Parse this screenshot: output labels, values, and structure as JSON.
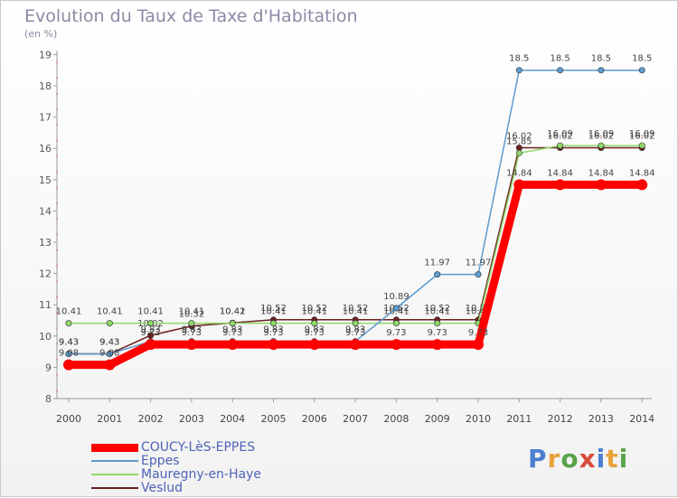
{
  "page": {
    "title": "Evolution du Taux de Taxe d'Habitation",
    "subtitle": "(en %)",
    "brand": [
      "P",
      "r",
      "o",
      "x",
      "i",
      "t",
      "i"
    ]
  },
  "colors": {
    "brand": [
      "#4a7fd1",
      "#e8a23a",
      "#5aa34a",
      "#d84a3a",
      "#4a7fd1",
      "#e8a23a",
      "#5aa34a"
    ]
  },
  "chart_data": {
    "type": "line",
    "title": "Evolution du Taux de Taxe d'Habitation",
    "ylabel": "(en %)",
    "xlabel": "",
    "x": [
      "2000",
      "2001",
      "2002",
      "2003",
      "2004",
      "2005",
      "2006",
      "2007",
      "2008",
      "2009",
      "2010",
      "2011",
      "2012",
      "2013",
      "2014"
    ],
    "ylim": [
      8,
      19
    ],
    "yticks": [
      "8",
      "9",
      "10",
      "11",
      "12",
      "13",
      "14",
      "15",
      "16",
      "17",
      "18",
      "19"
    ],
    "grid": false,
    "legend_position": "bottom-left",
    "series": [
      {
        "name": "Veslud",
        "color": "#6b1f1f",
        "values": [
          9.43,
          9.43,
          10.02,
          10.32,
          10.42,
          10.52,
          10.52,
          10.52,
          10.52,
          10.52,
          10.52,
          16.02,
          16.02,
          16.02,
          16.02
        ],
        "labels": [
          "9.43",
          "9.43",
          "10.02",
          "10.32",
          "10.42",
          "10.52",
          "10.52",
          "10.52",
          "10.52",
          "10.52",
          "10.52",
          "16.02",
          "16.02",
          "16.02",
          "16.02"
        ]
      },
      {
        "name": "Mauregny-en-Haye",
        "color": "#8fd86a",
        "values": [
          10.41,
          10.41,
          10.41,
          10.41,
          10.41,
          10.41,
          10.41,
          10.41,
          10.41,
          10.41,
          10.41,
          15.85,
          16.09,
          16.09,
          16.09
        ],
        "labels": [
          "10.41",
          "10.41",
          "10.41",
          "10.41",
          "10.41",
          "10.41",
          "10.41",
          "10.41",
          "10.41",
          "10.41",
          "10.41",
          "15.85",
          "16.09",
          "16.09",
          "16.09"
        ]
      },
      {
        "name": "Eppes",
        "color": "#5b9bd0",
        "values": [
          9.43,
          9.43,
          9.83,
          9.83,
          9.83,
          9.83,
          9.83,
          9.83,
          10.89,
          11.97,
          11.97,
          18.5,
          18.5,
          18.5,
          18.5
        ],
        "labels": [
          "9.43",
          "9.43",
          "9.83",
          "9.83",
          "9.83",
          "9.83",
          "9.83",
          "9.83",
          "10.89",
          "11.97",
          "11.97",
          "18.5",
          "18.5",
          "18.5",
          "18.5"
        ]
      },
      {
        "name": "COUCY-LèS-EPPES",
        "color": "#ff0000",
        "values": [
          9.08,
          9.08,
          9.73,
          9.73,
          9.73,
          9.73,
          9.73,
          9.73,
          9.73,
          9.73,
          9.73,
          14.84,
          14.84,
          14.84,
          14.84
        ],
        "labels": [
          "9.08",
          "9.08",
          "9.73",
          "9.73",
          "9.73",
          "9.73",
          "9.73",
          "9.73",
          "9.73",
          "9.73",
          "9.73",
          "14.84",
          "14.84",
          "14.84",
          "14.84"
        ]
      }
    ],
    "legend": [
      "COUCY-LèS-EPPES",
      "Eppes",
      "Mauregny-en-Haye",
      "Veslud"
    ]
  }
}
